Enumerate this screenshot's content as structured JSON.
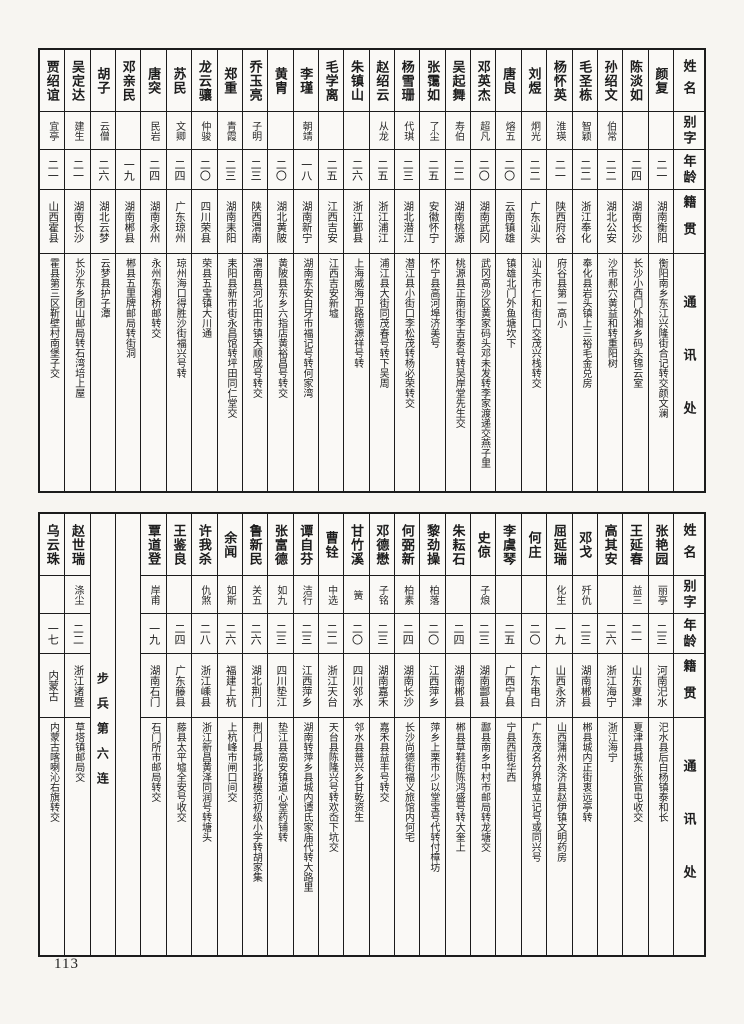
{
  "page_number": "113",
  "header_labels": {
    "name": "姓名",
    "zi": "别字",
    "age": "年龄",
    "origin": "籍贯",
    "address": "通讯处"
  },
  "tables": [
    {
      "id": "top",
      "entries": [
        {
          "name": "颜复",
          "zi": "",
          "age": "二一",
          "origin": "湖南衡阳",
          "address": "衡阳南乡东江兴隆街合记转交颜文澜"
        },
        {
          "name": "陈淡如",
          "zi": "",
          "age": "二四",
          "origin": "湖南长沙",
          "address": "长沙小西门外湘乡码头锦云室"
        },
        {
          "name": "孙绍文",
          "zi": "伯常",
          "age": "二二",
          "origin": "湖北公安",
          "address": "沙市郝穴黄益和转重阳树"
        },
        {
          "name": "毛圣栋",
          "zi": "智颖",
          "age": "二二",
          "origin": "浙江奉化",
          "address": "奉化县岩头镇上三裕毛金兑房"
        },
        {
          "name": "杨怀英",
          "zi": "淮瑛",
          "age": "二一",
          "origin": "陕西府谷",
          "address": "府谷县第一高小"
        },
        {
          "name": "刘煜",
          "zi": "炯光",
          "age": "二二",
          "origin": "广东汕头",
          "address": "汕头市仁和街口交茂兴栈转交"
        },
        {
          "name": "唐良",
          "zi": "熔五",
          "age": "二〇",
          "origin": "云南镇雄",
          "address": "镇雄北门外鱼塘坎下"
        },
        {
          "name": "邓英杰",
          "zi": "超凡",
          "age": "二〇",
          "origin": "湖南武冈",
          "address": "武冈高沙区黄家码头邓未发转李家渡递交燕子里"
        },
        {
          "name": "吴起舞",
          "zi": "寿伯",
          "age": "二二",
          "origin": "湖南桃源",
          "address": "桃源县正南街李吉泰号转吴岸堂先生交"
        },
        {
          "name": "张霭如",
          "zi": "了尘",
          "age": "二五",
          "origin": "安徽怀宁",
          "address": "怀宁县高河埠济美号"
        },
        {
          "name": "杨雪珊",
          "zi": "代琪",
          "age": "二三",
          "origin": "湖北潜江",
          "address": "潜江县小街口李松茂转杨必荣转交"
        },
        {
          "name": "赵绍云",
          "zi": "从龙",
          "age": "二五",
          "origin": "浙江浦江",
          "address": "浦江县大街同茂春号转下吴周"
        },
        {
          "name": "朱镇山",
          "zi": "",
          "age": "二六",
          "origin": "浙江鄞县",
          "address": "上海威海卫路德源祥号转"
        },
        {
          "name": "毛学离",
          "zi": "",
          "age": "二五",
          "origin": "江西吉安",
          "address": "江西吉安新墟"
        },
        {
          "name": "李瑾",
          "zi": "朝靖",
          "age": "一八",
          "origin": "湖南新宁",
          "address": "湖南东安白牙市福记号转何家湾"
        },
        {
          "name": "黄胄",
          "zi": "",
          "age": "二〇",
          "origin": "湖北黄陂",
          "address": "黄陂县东乡六指店黄裕昌号转交"
        },
        {
          "name": "乔玉亮",
          "zi": "子明",
          "age": "二三",
          "origin": "陕西渭南",
          "address": "渭南县河北田市镇天顺成号转交"
        },
        {
          "name": "郑重",
          "zi": "青霞",
          "age": "二三",
          "origin": "湖南耒阳",
          "address": "耒阳县新市街永昌馆转坪田同仁堂交"
        },
        {
          "name": "龙云骧",
          "zi": "仲骏",
          "age": "二〇",
          "origin": "四川荣县",
          "address": "荣县五宝镇大川通"
        },
        {
          "name": "苏民",
          "zi": "文卿",
          "age": "二四",
          "origin": "广东琼州",
          "address": "琼州海口得胜沙街福兴号转"
        },
        {
          "name": "唐突",
          "zi": "民岩",
          "age": "二四",
          "origin": "湖南永州",
          "address": "永州东湘桥邮转交"
        },
        {
          "name": "邓亲民",
          "zi": "",
          "age": "一九",
          "origin": "湖南郴县",
          "address": "郴县五里牌邮局转街洞"
        },
        {
          "name": "胡子",
          "zi": "云僧",
          "age": "二六",
          "origin": "湖北云梦",
          "address": "云梦县护子潭"
        },
        {
          "name": "吴定达",
          "zi": "建生",
          "age": "二一",
          "origin": "湖南长沙",
          "address": "长沙东乡团山邮局转石湾培上屋"
        },
        {
          "name": "贾绍谊",
          "zi": "宜亭",
          "age": "二一",
          "origin": "山西霍县",
          "address": "霍县第三区靳壁村南堡子交"
        }
      ]
    },
    {
      "id": "bottom",
      "entries": [
        {
          "name": "张艳园",
          "zi": "丽亭",
          "age": "二三",
          "origin": "河南汜水",
          "address": "汜水县后白杨镇泰和长"
        },
        {
          "name": "王延春",
          "zi": "益三",
          "age": "二一",
          "origin": "山东夏津",
          "address": "夏津县城东张官屯收交"
        },
        {
          "name": "高其安",
          "zi": "",
          "age": "二六",
          "origin": "浙江海宁",
          "address": "浙江海宁"
        },
        {
          "name": "邓戈",
          "zi": "歼仇",
          "age": "二三",
          "origin": "湖南郴县",
          "address": "郴县城内正街衷远亭转"
        },
        {
          "name": "屈延瑞",
          "zi": "化生",
          "age": "一九",
          "origin": "山西永济",
          "address": "山西蒲州永济县赵伊镇文明药房"
        },
        {
          "name": "何庄",
          "zi": "",
          "age": "二〇",
          "origin": "广东电白",
          "address": "广东茂名分界墟立记号或同兴号"
        },
        {
          "name": "李虞琴",
          "zi": "",
          "age": "二五",
          "origin": "广西宁县",
          "address": "宁县西街华西"
        },
        {
          "name": "史倞",
          "zi": "子烺",
          "age": "二三",
          "origin": "湖南酃县",
          "address": "酃县南乡中村市邮局转龙塘交"
        },
        {
          "name": "朱耘石",
          "zi": "",
          "age": "二四",
          "origin": "湖南郴县",
          "address": "郴县草鞋街陈鸿盛号转大奎上"
        },
        {
          "name": "黎劲操",
          "zi": "柏落",
          "age": "二〇",
          "origin": "江西萍乡",
          "address": "萍乡上栗市少以堂宝号代转付樟坊"
        },
        {
          "name": "何弼新",
          "zi": "柏素",
          "age": "二四",
          "origin": "湖南长沙",
          "address": "长沙尚德街福义旅馆内何宅"
        },
        {
          "name": "邓德懋",
          "zi": "子铭",
          "age": "二三",
          "origin": "湖南嘉禾",
          "address": "嘉禾县益丰号转交"
        },
        {
          "name": "甘竹溪",
          "zi": "簧",
          "age": "二〇",
          "origin": "四川邻水",
          "address": "邻水县普兴乡甘乾资生"
        },
        {
          "name": "曹铨",
          "zi": "中选",
          "age": "二二",
          "origin": "浙江天台",
          "address": "天台县陈隆兴号转欢岙下坑交"
        },
        {
          "name": "谭自芬",
          "zi": "洁行",
          "age": "二三",
          "origin": "江西萍乡",
          "address": "湖南转萍乡县城内谭氏家庙代转大路里"
        },
        {
          "name": "张富德",
          "zi": "如九",
          "age": "二三",
          "origin": "四川垫江",
          "address": "垫江县高安镇道心堂药铺转"
        },
        {
          "name": "鲁新民",
          "zi": "关五",
          "age": "二六",
          "origin": "湖北荆门",
          "address": "荆门县城北路模范初级小学转胡家集"
        },
        {
          "name": "余闻",
          "zi": "如斯",
          "age": "二六",
          "origin": "福建上杭",
          "address": "上杭峰市闸口间交"
        },
        {
          "name": "许我杀",
          "zi": "仇煞",
          "age": "二八",
          "origin": "浙江嵊县",
          "address": "浙江新昌黄泽同润号转塘头"
        },
        {
          "name": "王鉴良",
          "zi": "",
          "age": "二四",
          "origin": "广东藤县",
          "address": "藤县太平墟全安号收交"
        },
        {
          "name": "覃道登",
          "zi": "岸甫",
          "age": "一九",
          "origin": "湖南石门",
          "address": "石门所市邮局转交"
        },
        {
          "empty": true
        },
        {
          "note": "步兵第六连"
        },
        {
          "name": "赵世瑞",
          "zi": "涤尘",
          "age": "二二",
          "origin": "浙江诸暨",
          "address": "草塔镇邮局交"
        },
        {
          "name": "乌云珠",
          "zi": "",
          "age": "一七",
          "origin": "内蒙古",
          "address": "内蒙古喀喇沁右旗转交"
        }
      ]
    }
  ]
}
